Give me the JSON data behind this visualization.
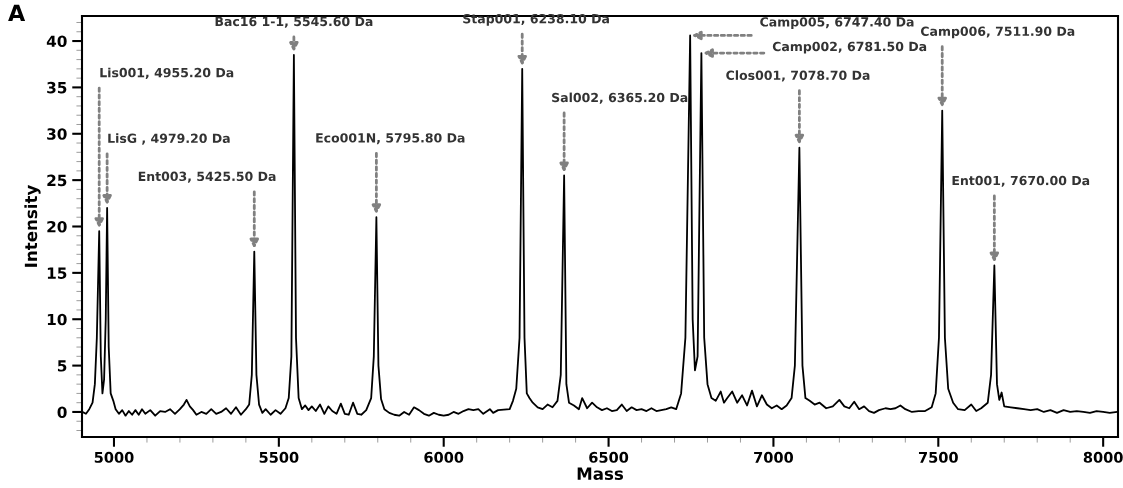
{
  "chart_data": {
    "type": "line",
    "xlabel": "Mass",
    "ylabel": "Intensity",
    "xlim": [
      4903,
      8045
    ],
    "ylim": [
      -2.7,
      42.7
    ],
    "xticks": [
      5000,
      5500,
      6000,
      6500,
      7000,
      7500,
      8000
    ],
    "yticks": [
      0,
      5,
      10,
      15,
      20,
      25,
      30,
      35,
      40
    ],
    "grid": false,
    "marker": "none",
    "line_style": "solid",
    "annotations": [
      "A",
      {
        "text": "Lis001, 4955.20 Da",
        "x": 4955.2,
        "y": 19.5
      },
      {
        "text": "LisG , 4979.20 Da",
        "x": 4979.2,
        "y": 22
      },
      {
        "text": "Ent003, 5425.50 Da",
        "x": 5425.5,
        "y": 17.3
      },
      {
        "text": "Bac16 1-1, 5545.60 Da",
        "x": 5545.6,
        "y": 38.5
      },
      {
        "text": "Eco001N, 5795.80 Da",
        "x": 5795.8,
        "y": 21
      },
      {
        "text": "Stap001, 6238.10 Da",
        "x": 6238.1,
        "y": 37
      },
      {
        "text": "Sal002, 6365.20 Da",
        "x": 6365.2,
        "y": 25.5
      },
      {
        "text": "Camp005, 6747.40 Da",
        "x": 6747.4,
        "y": 40.6
      },
      {
        "text": "Camp002, 6781.50 Da",
        "x": 6781.5,
        "y": 38.7
      },
      {
        "text": "Clos001, 7078.70 Da",
        "x": 7078.7,
        "y": 28.5
      },
      {
        "text": "Camp006, 7511.90 Da",
        "x": 7511.9,
        "y": 32.5
      },
      {
        "text": "Ent001, 7670.00 Da",
        "x": 7670,
        "y": 15.8
      }
    ],
    "series": [
      {
        "color": "#000000",
        "x": [
          4905,
          4915,
          4925,
          4935,
          4942,
          4948,
          4955.2,
          4960,
          4965,
          4970,
          4975,
          4979.2,
          4984,
          4990,
          4998,
          5005,
          5015,
          5025,
          5035,
          5045,
          5055,
          5065,
          5075,
          5085,
          5095,
          5110,
          5125,
          5140,
          5155,
          5170,
          5185,
          5200,
          5212,
          5220,
          5230,
          5240,
          5250,
          5265,
          5280,
          5295,
          5310,
          5325,
          5340,
          5355,
          5370,
          5385,
          5400,
          5410,
          5418,
          5425.5,
          5432,
          5440,
          5450,
          5460,
          5475,
          5490,
          5505,
          5520,
          5530,
          5538,
          5545.6,
          5552,
          5560,
          5570,
          5580,
          5590,
          5600,
          5612,
          5625,
          5638,
          5650,
          5662,
          5675,
          5688,
          5700,
          5712,
          5725,
          5738,
          5750,
          5765,
          5780,
          5788,
          5795.8,
          5802,
          5810,
          5820,
          5835,
          5850,
          5865,
          5880,
          5895,
          5910,
          5925,
          5940,
          5955,
          5970,
          5985,
          6000,
          6015,
          6030,
          6045,
          6060,
          6075,
          6090,
          6105,
          6120,
          6140,
          6150,
          6165,
          6200,
          6210,
          6220,
          6230,
          6238.1,
          6245,
          6252,
          6260,
          6270,
          6285,
          6300,
          6315,
          6330,
          6345,
          6355,
          6365.2,
          6372,
          6380,
          6395,
          6410,
          6420,
          6435,
          6450,
          6465,
          6480,
          6495,
          6510,
          6525,
          6540,
          6555,
          6570,
          6585,
          6600,
          6615,
          6630,
          6645,
          6660,
          6675,
          6690,
          6705,
          6720,
          6733,
          6747.4,
          6755,
          6762,
          6770,
          6781.5,
          6790,
          6800,
          6812,
          6825,
          6840,
          6850,
          6860,
          6875,
          6890,
          6905,
          6920,
          6935,
          6950,
          6965,
          6980,
          6995,
          7010,
          7025,
          7040,
          7055,
          7065,
          7078.7,
          7088,
          7097,
          7110,
          7125,
          7140,
          7160,
          7180,
          7200,
          7215,
          7230,
          7245,
          7260,
          7275,
          7290,
          7305,
          7320,
          7340,
          7355,
          7370,
          7385,
          7400,
          7420,
          7440,
          7460,
          7480,
          7492,
          7502,
          7511.9,
          7520,
          7530,
          7545,
          7560,
          7580,
          7600,
          7615,
          7630,
          7650,
          7660,
          7670,
          7678,
          7685,
          7692,
          7700,
          7720,
          7740,
          7760,
          7780,
          7800,
          7820,
          7840,
          7860,
          7880,
          7900,
          7920,
          7940,
          7960,
          7980,
          8000,
          8020,
          8040
        ],
        "values": [
          0,
          -0.2,
          0.3,
          1,
          3,
          8,
          19.5,
          6,
          2,
          3.5,
          10,
          22,
          7,
          2,
          1.2,
          0.3,
          -0.2,
          0.2,
          -0.4,
          0.1,
          -0.3,
          0.2,
          -0.3,
          0.3,
          -0.2,
          0.2,
          -0.4,
          0.1,
          0,
          0.3,
          -0.2,
          0.3,
          0.8,
          1.3,
          0.6,
          0.2,
          -0.3,
          0,
          -0.2,
          0.3,
          -0.2,
          0,
          0.4,
          -0.2,
          0.5,
          -0.3,
          0.3,
          0.8,
          4,
          17.3,
          4,
          0.8,
          -0.1,
          0.3,
          -0.3,
          0.2,
          -0.2,
          0.4,
          1.5,
          6,
          38.5,
          8,
          1.5,
          0.3,
          0.7,
          0.2,
          0.6,
          0.1,
          0.8,
          -0.2,
          0.6,
          0.1,
          -0.2,
          0.9,
          -0.2,
          -0.3,
          1,
          -0.2,
          -0.3,
          0.2,
          1.5,
          6,
          21,
          5,
          1.4,
          0.3,
          -0.1,
          -0.3,
          -0.4,
          0,
          -0.3,
          0.5,
          0.2,
          -0.2,
          -0.4,
          -0.1,
          -0.3,
          -0.4,
          -0.3,
          0,
          -0.2,
          0.1,
          0.3,
          0.2,
          0.3,
          -0.2,
          0.3,
          -0.1,
          0.2,
          0.3,
          1.2,
          2.5,
          8,
          37,
          8,
          2,
          1.5,
          1,
          0.5,
          0.3,
          0.8,
          0.5,
          1.2,
          4,
          25.5,
          3,
          1,
          0.7,
          0.3,
          1.5,
          0.4,
          1,
          0.5,
          0.2,
          0.4,
          0.1,
          0.2,
          0.8,
          0.1,
          0.5,
          0.2,
          0.3,
          0.1,
          0.4,
          0.1,
          0.2,
          0.3,
          0.5,
          0.3,
          2,
          8,
          40.6,
          10,
          4.5,
          6,
          38.7,
          8,
          3,
          1.5,
          1.2,
          2.2,
          1,
          1.5,
          2.2,
          1,
          1.8,
          0.7,
          2.3,
          0.6,
          1.8,
          0.8,
          0.4,
          0.7,
          0.3,
          0.7,
          1.5,
          5,
          28.5,
          5,
          1.5,
          1.2,
          0.8,
          1,
          0.4,
          0.6,
          1.3,
          0.6,
          0.4,
          1.1,
          0.3,
          0.6,
          0.1,
          -0.1,
          0.2,
          0.4,
          0.3,
          0.4,
          0.7,
          0.3,
          0,
          0.1,
          0.1,
          0.5,
          2,
          8,
          32.5,
          8,
          2.5,
          1,
          0.3,
          0.2,
          0.8,
          0.1,
          0.4,
          1,
          4,
          15.8,
          3,
          1.3,
          2.1,
          0.6,
          0.5,
          0.4,
          0.3,
          0.2,
          0.3,
          0,
          0.2,
          -0.1,
          0.2,
          0,
          0.1,
          0,
          -0.1,
          0.1,
          0,
          -0.1,
          0
        ]
      }
    ]
  }
}
